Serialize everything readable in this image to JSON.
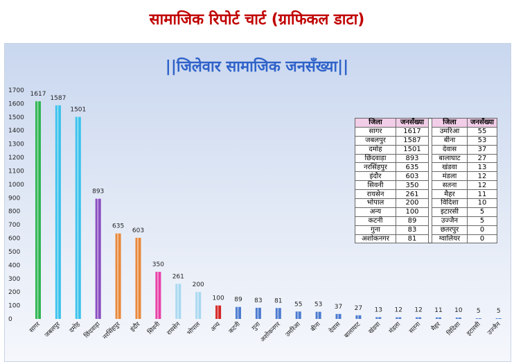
{
  "page": {
    "title": "सामाजिक रिपोर्ट चार्ट (ग्राफिकल डाटा)"
  },
  "table": {
    "headers": [
      "जिला",
      "जनसँख्या",
      "जिला",
      "जनसँख्या"
    ],
    "rows": [
      [
        "सागर",
        "1617",
        "उमरिआ",
        "55"
      ],
      [
        "जबलपुर",
        "1587",
        "बीना",
        "53"
      ],
      [
        "दमोह",
        "1501",
        "देवास",
        "37"
      ],
      [
        "छिंदवाड़ा",
        "893",
        "बालाघाट",
        "27"
      ],
      [
        "नरसिंहपुर",
        "635",
        "खंडवा",
        "13"
      ],
      [
        "इंदौर",
        "603",
        "मंडला",
        "12"
      ],
      [
        "सिवनी",
        "350",
        "सतना",
        "12"
      ],
      [
        "रायसेन",
        "261",
        "मैहर",
        "11"
      ],
      [
        "भोपाल",
        "200",
        "विदिशा",
        "10"
      ],
      [
        "अन्य",
        "100",
        "इटारसी",
        "5"
      ],
      [
        "कटनी",
        "89",
        "उज्जैन",
        "5"
      ],
      [
        "गुना",
        "83",
        "छतरपुर",
        "0"
      ],
      [
        "अशोकनगर",
        "81",
        "ग्वालियर",
        "0"
      ]
    ]
  },
  "chart_data": {
    "type": "bar",
    "title": "||जिलेवार सामाजिक जनसँख्या||",
    "xlabel": "",
    "ylabel": "",
    "ylim": [
      0,
      1700
    ],
    "yticks": [
      0,
      100,
      200,
      300,
      400,
      500,
      600,
      700,
      800,
      900,
      1000,
      1100,
      1200,
      1300,
      1400,
      1500,
      1600,
      1700
    ],
    "grid": false,
    "categories": [
      "सागर",
      "जबलपुर",
      "दमोह",
      "छिंदवाड़ा",
      "नरसिंहपुर",
      "इंदौर",
      "सिवनी",
      "रायसेन",
      "भोपाल",
      "अन्य",
      "कटनी",
      "गुना",
      "अशोकनगर",
      "उमरिआ",
      "बीना",
      "देवास",
      "बालाघाट",
      "खंडवा",
      "मंडला",
      "सतना",
      "मैहर",
      "विदिशा",
      "इटारसी",
      "उज्जैन"
    ],
    "values": [
      1617,
      1587,
      1501,
      893,
      635,
      603,
      350,
      261,
      200,
      100,
      89,
      83,
      81,
      55,
      53,
      37,
      27,
      13,
      12,
      12,
      11,
      10,
      5,
      5
    ],
    "colors": [
      "#2fb552",
      "#39c2ec",
      "#39c2ec",
      "#8a4cc0",
      "#e8883a",
      "#e8883a",
      "#e840a8",
      "#a8d8f0",
      "#a8d8f0",
      "#d42424",
      "#4a7ad0",
      "#4a7ad0",
      "#4a7ad0",
      "#4a7ad0",
      "#4a7ad0",
      "#4a7ad0",
      "#4a7ad0",
      "#4a7ad0",
      "#4a7ad0",
      "#4a7ad0",
      "#4a7ad0",
      "#4a7ad0",
      "#4a7ad0",
      "#4a7ad0"
    ]
  }
}
